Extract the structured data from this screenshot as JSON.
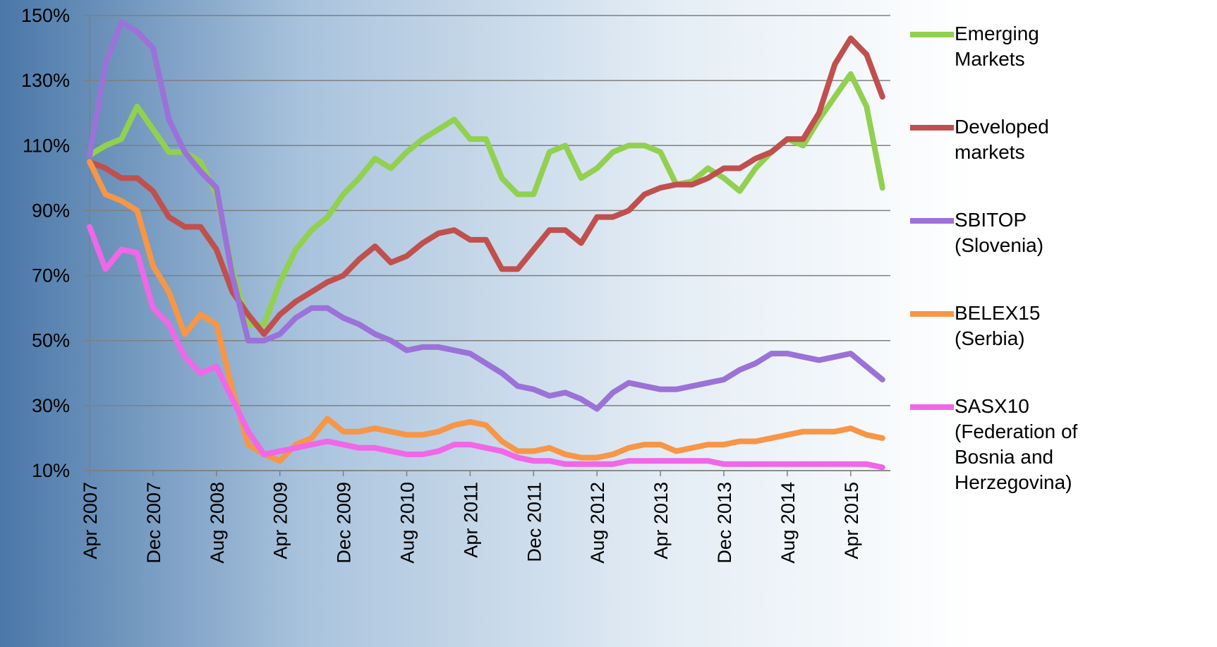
{
  "chart_data": {
    "type": "line",
    "x": [
      "2007-04",
      "2007-06",
      "2007-08",
      "2007-10",
      "2007-12",
      "2008-02",
      "2008-04",
      "2008-06",
      "2008-08",
      "2008-10",
      "2008-12",
      "2009-02",
      "2009-04",
      "2009-06",
      "2009-08",
      "2009-10",
      "2009-12",
      "2010-02",
      "2010-04",
      "2010-06",
      "2010-08",
      "2010-10",
      "2010-12",
      "2011-02",
      "2011-04",
      "2011-06",
      "2011-08",
      "2011-10",
      "2011-12",
      "2012-02",
      "2012-04",
      "2012-06",
      "2012-08",
      "2012-10",
      "2012-12",
      "2013-02",
      "2013-04",
      "2013-06",
      "2013-08",
      "2013-10",
      "2013-12",
      "2014-02",
      "2014-04",
      "2014-06",
      "2014-08",
      "2014-10",
      "2014-12",
      "2015-02",
      "2015-04",
      "2015-06",
      "2015-08"
    ],
    "series": [
      {
        "name": "Emerging Markets",
        "color": "#92d050",
        "values": [
          107,
          110,
          112,
          122,
          115,
          108,
          108,
          105,
          95,
          72,
          55,
          55,
          68,
          78,
          84,
          88,
          95,
          100,
          106,
          103,
          108,
          112,
          115,
          118,
          112,
          112,
          100,
          95,
          95,
          108,
          110,
          100,
          103,
          108,
          110,
          110,
          108,
          98,
          99,
          103,
          100,
          96,
          103,
          108,
          112,
          110,
          118,
          125,
          132,
          122,
          97
        ]
      },
      {
        "name": "Developed markets",
        "color": "#c0504d",
        "values": [
          105,
          103,
          100,
          100,
          96,
          88,
          85,
          85,
          78,
          65,
          58,
          52,
          58,
          62,
          65,
          68,
          70,
          75,
          79,
          74,
          76,
          80,
          83,
          84,
          81,
          81,
          72,
          72,
          78,
          84,
          84,
          80,
          88,
          88,
          90,
          95,
          97,
          98,
          98,
          100,
          103,
          103,
          106,
          108,
          112,
          112,
          120,
          135,
          143,
          138,
          125
        ]
      },
      {
        "name": "SBITOP (Slovenia)",
        "color": "#9b72d8",
        "values": [
          107,
          135,
          148,
          145,
          140,
          118,
          108,
          102,
          97,
          70,
          50,
          50,
          52,
          57,
          60,
          60,
          57,
          55,
          52,
          50,
          47,
          48,
          48,
          47,
          46,
          43,
          40,
          36,
          35,
          33,
          34,
          32,
          29,
          34,
          37,
          36,
          35,
          35,
          36,
          37,
          38,
          41,
          43,
          46,
          46,
          45,
          44,
          45,
          46,
          42,
          38
        ]
      },
      {
        "name": "BELEX15 (Serbia)",
        "color": "#f79646",
        "values": [
          105,
          95,
          93,
          90,
          73,
          65,
          52,
          58,
          55,
          35,
          18,
          15,
          13,
          18,
          20,
          26,
          22,
          22,
          23,
          22,
          21,
          21,
          22,
          24,
          25,
          24,
          19,
          16,
          16,
          17,
          15,
          14,
          14,
          15,
          17,
          18,
          18,
          16,
          17,
          18,
          18,
          19,
          19,
          20,
          21,
          22,
          22,
          22,
          23,
          21,
          20
        ]
      },
      {
        "name": "SASX10 (Federation of Bosnia and Herzegovina)",
        "color": "#f067e8",
        "values": [
          85,
          72,
          78,
          77,
          60,
          55,
          45,
          40,
          42,
          32,
          22,
          15,
          16,
          17,
          18,
          19,
          18,
          17,
          17,
          16,
          15,
          15,
          16,
          18,
          18,
          17,
          16,
          14,
          13,
          13,
          12,
          12,
          12,
          12,
          13,
          13,
          13,
          13,
          13,
          13,
          12,
          12,
          12,
          12,
          12,
          12,
          12,
          12,
          12,
          12,
          11
        ]
      }
    ],
    "xlim": [
      "2007-04",
      "2015-09"
    ],
    "xticks": [
      {
        "value": "2007-04",
        "label": "Apr 2007"
      },
      {
        "value": "2007-12",
        "label": "Dec 2007"
      },
      {
        "value": "2008-08",
        "label": "Aug 2008"
      },
      {
        "value": "2009-04",
        "label": "Apr 2009"
      },
      {
        "value": "2009-12",
        "label": "Dec 2009"
      },
      {
        "value": "2010-08",
        "label": "Aug 2010"
      },
      {
        "value": "2011-04",
        "label": "Apr 2011"
      },
      {
        "value": "2011-12",
        "label": "Dec 2011"
      },
      {
        "value": "2012-08",
        "label": "Aug 2012"
      },
      {
        "value": "2013-04",
        "label": "Apr 2013"
      },
      {
        "value": "2013-12",
        "label": "Dec 2013"
      },
      {
        "value": "2014-08",
        "label": "Aug 2014"
      },
      {
        "value": "2015-04",
        "label": "Apr 2015"
      }
    ],
    "ylim": [
      10,
      150
    ],
    "yticks": [
      {
        "value": 10,
        "label": "10%"
      },
      {
        "value": 30,
        "label": "30%"
      },
      {
        "value": 50,
        "label": "50%"
      },
      {
        "value": 70,
        "label": "70%"
      },
      {
        "value": 90,
        "label": "90%"
      },
      {
        "value": 110,
        "label": "110%"
      },
      {
        "value": 130,
        "label": "130%"
      },
      {
        "value": 150,
        "label": "150%"
      }
    ],
    "grid": true
  }
}
